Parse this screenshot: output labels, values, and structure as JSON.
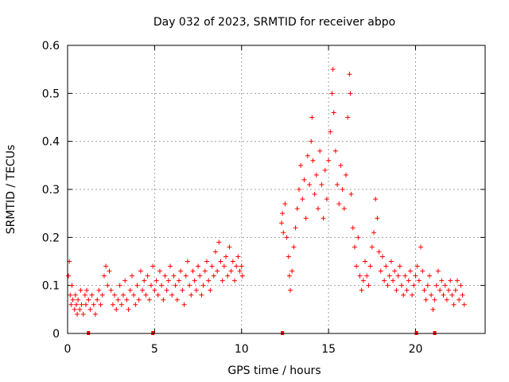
{
  "chart_data": {
    "type": "scatter",
    "title": "Day 032 of 2023, SRMTID for receiver abpo",
    "xlabel": "GPS time / hours",
    "ylabel": "SRMTID / TECUs",
    "xlim": [
      0,
      24
    ],
    "ylim": [
      0,
      0.6
    ],
    "x_ticks": [
      0,
      5,
      10,
      15,
      20
    ],
    "x_tick_labels": [
      "0",
      "5",
      "10",
      "15",
      "20"
    ],
    "y_ticks": [
      0,
      0.1,
      0.2,
      0.3,
      0.4,
      0.5,
      0.6
    ],
    "y_tick_labels": [
      "0",
      "0.1",
      "0.2",
      "0.3",
      "0.4",
      "0.5",
      "0.6"
    ],
    "grid": true,
    "marker": "+",
    "color": "#ff0000",
    "series": [
      {
        "name": "SRMTID",
        "points": [
          [
            0.05,
            0.12
          ],
          [
            0.1,
            0.15
          ],
          [
            0.15,
            0.08
          ],
          [
            0.2,
            0.06
          ],
          [
            0.25,
            0.1
          ],
          [
            0.3,
            0.07
          ],
          [
            0.4,
            0.05
          ],
          [
            0.45,
            0.08
          ],
          [
            0.5,
            0.06
          ],
          [
            0.55,
            0.04
          ],
          [
            0.6,
            0.07
          ],
          [
            0.7,
            0.05
          ],
          [
            0.75,
            0.09
          ],
          [
            0.8,
            0.06
          ],
          [
            0.9,
            0.04
          ],
          [
            1.0,
            0.08
          ],
          [
            1.05,
            0.06
          ],
          [
            1.1,
            0.09
          ],
          [
            1.2,
            0.07
          ],
          [
            1.3,
            0.05
          ],
          [
            1.4,
            0.08
          ],
          [
            1.5,
            0.06
          ],
          [
            1.6,
            0.04
          ],
          [
            1.7,
            0.07
          ],
          [
            1.8,
            0.09
          ],
          [
            1.9,
            0.06
          ],
          [
            2.0,
            0.08
          ],
          [
            2.1,
            0.12
          ],
          [
            2.2,
            0.14
          ],
          [
            2.3,
            0.1
          ],
          [
            2.4,
            0.13
          ],
          [
            2.5,
            0.09
          ],
          [
            2.6,
            0.06
          ],
          [
            2.7,
            0.08
          ],
          [
            2.8,
            0.05
          ],
          [
            2.9,
            0.07
          ],
          [
            3.0,
            0.1
          ],
          [
            3.1,
            0.06
          ],
          [
            3.2,
            0.08
          ],
          [
            3.3,
            0.11
          ],
          [
            3.4,
            0.07
          ],
          [
            3.5,
            0.05
          ],
          [
            3.6,
            0.09
          ],
          [
            3.7,
            0.12
          ],
          [
            3.8,
            0.08
          ],
          [
            3.9,
            0.06
          ],
          [
            4.0,
            0.1
          ],
          [
            4.1,
            0.07
          ],
          [
            4.2,
            0.13
          ],
          [
            4.3,
            0.09
          ],
          [
            4.4,
            0.11
          ],
          [
            4.5,
            0.08
          ],
          [
            4.6,
            0.12
          ],
          [
            4.7,
            0.07
          ],
          [
            4.8,
            0.1
          ],
          [
            4.9,
            0.14
          ],
          [
            5.0,
            0.09
          ],
          [
            5.1,
            0.11
          ],
          [
            5.2,
            0.08
          ],
          [
            5.3,
            0.13
          ],
          [
            5.4,
            0.1
          ],
          [
            5.5,
            0.07
          ],
          [
            5.6,
            0.12
          ],
          [
            5.7,
            0.09
          ],
          [
            5.8,
            0.11
          ],
          [
            5.9,
            0.14
          ],
          [
            6.0,
            0.08
          ],
          [
            6.1,
            0.12
          ],
          [
            6.2,
            0.1
          ],
          [
            6.3,
            0.07
          ],
          [
            6.4,
            0.11
          ],
          [
            6.5,
            0.13
          ],
          [
            6.6,
            0.09
          ],
          [
            6.7,
            0.06
          ],
          [
            6.8,
            0.12
          ],
          [
            6.9,
            0.15
          ],
          [
            7.0,
            0.1
          ],
          [
            7.1,
            0.08
          ],
          [
            7.2,
            0.13
          ],
          [
            7.3,
            0.11
          ],
          [
            7.4,
            0.09
          ],
          [
            7.5,
            0.14
          ],
          [
            7.6,
            0.12
          ],
          [
            7.7,
            0.08
          ],
          [
            7.8,
            0.1
          ],
          [
            7.9,
            0.13
          ],
          [
            8.0,
            0.15
          ],
          [
            8.1,
            0.11
          ],
          [
            8.2,
            0.09
          ],
          [
            8.3,
            0.14
          ],
          [
            8.4,
            0.12
          ],
          [
            8.5,
            0.17
          ],
          [
            8.6,
            0.13
          ],
          [
            8.7,
            0.19
          ],
          [
            8.8,
            0.15
          ],
          [
            8.9,
            0.11
          ],
          [
            9.0,
            0.14
          ],
          [
            9.1,
            0.16
          ],
          [
            9.2,
            0.12
          ],
          [
            9.3,
            0.18
          ],
          [
            9.4,
            0.13
          ],
          [
            9.5,
            0.15
          ],
          [
            9.6,
            0.11
          ],
          [
            9.7,
            0.14
          ],
          [
            9.8,
            0.16
          ],
          [
            9.9,
            0.13
          ],
          [
            10.0,
            0.14
          ],
          [
            10.05,
            0.12
          ],
          [
            12.3,
            0.23
          ],
          [
            12.35,
            0.25
          ],
          [
            12.4,
            0.21
          ],
          [
            12.5,
            0.27
          ],
          [
            12.6,
            0.2
          ],
          [
            12.7,
            0.16
          ],
          [
            12.75,
            0.12
          ],
          [
            12.8,
            0.09
          ],
          [
            12.9,
            0.13
          ],
          [
            13.0,
            0.18
          ],
          [
            13.1,
            0.22
          ],
          [
            13.2,
            0.26
          ],
          [
            13.3,
            0.3
          ],
          [
            13.4,
            0.35
          ],
          [
            13.5,
            0.28
          ],
          [
            13.6,
            0.32
          ],
          [
            13.7,
            0.24
          ],
          [
            13.8,
            0.37
          ],
          [
            13.9,
            0.31
          ],
          [
            14.0,
            0.4
          ],
          [
            14.05,
            0.45
          ],
          [
            14.1,
            0.36
          ],
          [
            14.2,
            0.29
          ],
          [
            14.3,
            0.33
          ],
          [
            14.4,
            0.26
          ],
          [
            14.5,
            0.38
          ],
          [
            14.6,
            0.31
          ],
          [
            14.7,
            0.24
          ],
          [
            14.8,
            0.34
          ],
          [
            14.9,
            0.28
          ],
          [
            15.0,
            0.36
          ],
          [
            15.1,
            0.42
          ],
          [
            15.2,
            0.5
          ],
          [
            15.25,
            0.55
          ],
          [
            15.3,
            0.46
          ],
          [
            15.4,
            0.38
          ],
          [
            15.5,
            0.31
          ],
          [
            15.6,
            0.27
          ],
          [
            15.7,
            0.35
          ],
          [
            15.8,
            0.3
          ],
          [
            15.9,
            0.26
          ],
          [
            16.0,
            0.33
          ],
          [
            16.1,
            0.45
          ],
          [
            16.2,
            0.54
          ],
          [
            16.25,
            0.5
          ],
          [
            16.3,
            0.29
          ],
          [
            16.4,
            0.22
          ],
          [
            16.5,
            0.18
          ],
          [
            16.6,
            0.14
          ],
          [
            16.7,
            0.2
          ],
          [
            16.8,
            0.12
          ],
          [
            16.9,
            0.09
          ],
          [
            17.0,
            0.11
          ],
          [
            17.1,
            0.15
          ],
          [
            17.2,
            0.12
          ],
          [
            17.3,
            0.1
          ],
          [
            17.4,
            0.14
          ],
          [
            17.5,
            0.18
          ],
          [
            17.6,
            0.21
          ],
          [
            17.7,
            0.28
          ],
          [
            17.8,
            0.24
          ],
          [
            17.9,
            0.17
          ],
          [
            18.0,
            0.13
          ],
          [
            18.1,
            0.16
          ],
          [
            18.2,
            0.11
          ],
          [
            18.3,
            0.14
          ],
          [
            18.4,
            0.1
          ],
          [
            18.5,
            0.12
          ],
          [
            18.6,
            0.15
          ],
          [
            18.7,
            0.11
          ],
          [
            18.8,
            0.13
          ],
          [
            18.9,
            0.09
          ],
          [
            19.0,
            0.12
          ],
          [
            19.1,
            0.14
          ],
          [
            19.2,
            0.1
          ],
          [
            19.3,
            0.08
          ],
          [
            19.4,
            0.12
          ],
          [
            19.5,
            0.09
          ],
          [
            19.6,
            0.11
          ],
          [
            19.7,
            0.13
          ],
          [
            19.8,
            0.08
          ],
          [
            19.9,
            0.1
          ],
          [
            20.0,
            0.12
          ],
          [
            20.1,
            0.14
          ],
          [
            20.2,
            0.11
          ],
          [
            20.3,
            0.18
          ],
          [
            20.4,
            0.13
          ],
          [
            20.5,
            0.09
          ],
          [
            20.6,
            0.07
          ],
          [
            20.7,
            0.1
          ],
          [
            20.8,
            0.12
          ],
          [
            20.9,
            0.08
          ],
          [
            21.0,
            0.05
          ],
          [
            21.1,
            0.07
          ],
          [
            21.2,
            0.1
          ],
          [
            21.3,
            0.13
          ],
          [
            21.4,
            0.09
          ],
          [
            21.5,
            0.11
          ],
          [
            21.6,
            0.08
          ],
          [
            21.7,
            0.1
          ],
          [
            21.8,
            0.07
          ],
          [
            21.9,
            0.09
          ],
          [
            22.0,
            0.11
          ],
          [
            22.1,
            0.08
          ],
          [
            22.2,
            0.06
          ],
          [
            22.3,
            0.09
          ],
          [
            22.4,
            0.11
          ],
          [
            22.5,
            0.07
          ],
          [
            22.6,
            0.1
          ],
          [
            22.7,
            0.08
          ],
          [
            22.8,
            0.06
          ]
        ]
      }
    ],
    "x_markers": [
      1.2,
      4.9,
      12.35,
      20.05,
      21.1
    ]
  }
}
